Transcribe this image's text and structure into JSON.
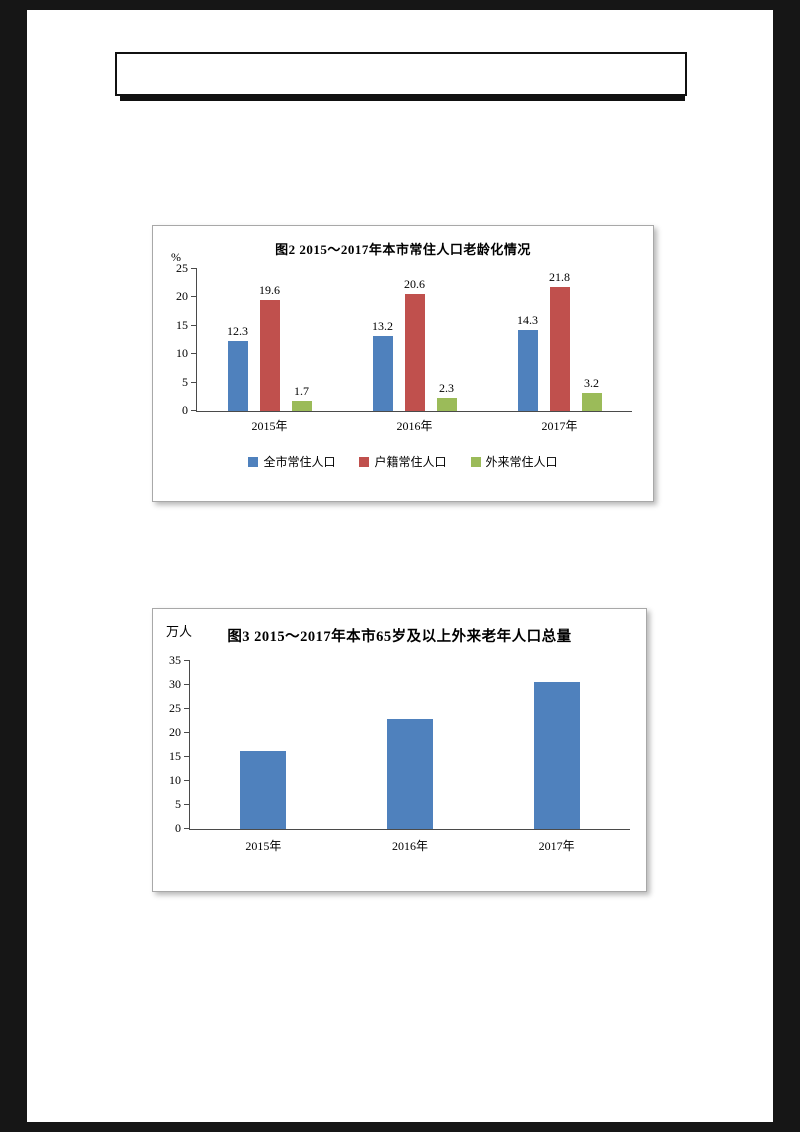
{
  "page": {
    "header": {
      "text": ""
    }
  },
  "chart_data": [
    {
      "type": "bar",
      "title": "图2 2015～2017年本市常住人口老龄化情况",
      "unit": "%",
      "categories": [
        "2015年",
        "2016年",
        "2017年"
      ],
      "series": [
        {
          "name": "全市常住人口",
          "color": "#4f81bd",
          "values": [
            12.3,
            13.2,
            14.3
          ]
        },
        {
          "name": "户籍常住人口",
          "color": "#c0504d",
          "values": [
            19.6,
            20.6,
            21.8
          ]
        },
        {
          "name": "外来常住人口",
          "color": "#9bbb59",
          "values": [
            1.7,
            2.3,
            3.2
          ]
        }
      ],
      "ylim": [
        0,
        25
      ],
      "ytick_step": 5,
      "grid": false,
      "show_value_labels": true,
      "legend_position": "bottom"
    },
    {
      "type": "bar",
      "title": "图3 2015～2017年本市65岁及以上外来老年人口总量",
      "unit": "万人",
      "categories": [
        "2015年",
        "2016年",
        "2017年"
      ],
      "series": [
        {
          "color": "#4f81bd",
          "values": [
            16.2,
            22.9,
            30.7
          ]
        }
      ],
      "ylim": [
        0,
        35
      ],
      "ytick_step": 5,
      "grid": false,
      "show_value_labels": false,
      "legend_position": "none"
    }
  ]
}
